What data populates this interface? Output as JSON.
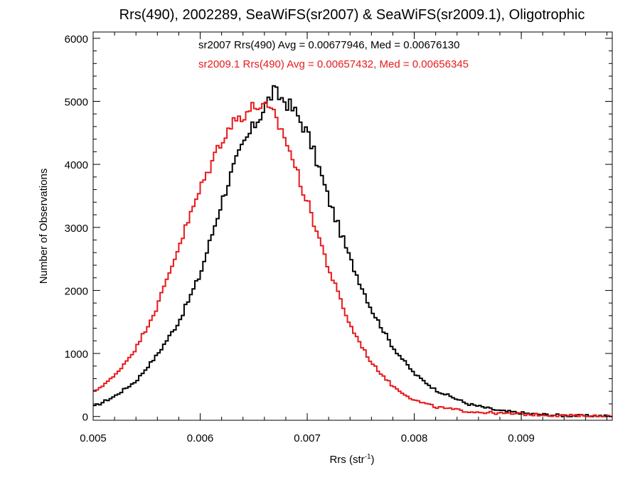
{
  "chart_data": {
    "type": "line",
    "step": true,
    "title": "Rrs(490), 2002289, SeaWiFS(sr2007) & SeaWiFS(sr2009.1), Oligotrophic",
    "xlabel": "Rrs (str",
    "xlabel_superscript": "-1",
    "xlabel_close": ")",
    "ylabel": "Number of Observations",
    "xlim": [
      0.005,
      0.00985
    ],
    "ylim": [
      -60,
      6100
    ],
    "xticks": [
      0.005,
      0.006,
      0.007,
      0.008,
      0.009
    ],
    "xtick_labels": [
      "0.005",
      "0.006",
      "0.007",
      "0.008",
      "0.009"
    ],
    "yticks": [
      0,
      1000,
      2000,
      3000,
      4000,
      5000,
      6000
    ],
    "ytick_labels": [
      "0",
      "1000",
      "2000",
      "3000",
      "4000",
      "5000",
      "6000"
    ],
    "grid": false,
    "annotations": [
      {
        "text": "sr2007 Rrs(490) Avg = 0.00677946, Med = 0.00676130",
        "color": "#000000"
      },
      {
        "text": "sr2009.1 Rrs(490) Avg = 0.00657432, Med = 0.00656345",
        "color": "#e8191c"
      }
    ],
    "series": [
      {
        "color": "#000000",
        "x": [
          0.005,
          0.0052,
          0.0054,
          0.0056,
          0.0058,
          0.006,
          0.0062,
          0.0063,
          0.0064,
          0.0065,
          0.0066,
          0.00668,
          0.0068,
          0.0069,
          0.007,
          0.0071,
          0.0072,
          0.0074,
          0.0076,
          0.0078,
          0.008,
          0.0082,
          0.0085,
          0.0088,
          0.0091,
          0.0094,
          0.00985
        ],
        "y": [
          150,
          320,
          560,
          980,
          1500,
          2250,
          3400,
          3900,
          4300,
          4600,
          4900,
          5150,
          5000,
          4800,
          4500,
          4000,
          3450,
          2500,
          1700,
          1100,
          680,
          420,
          200,
          90,
          40,
          15,
          5
        ]
      },
      {
        "color": "#e8191c",
        "x": [
          0.005,
          0.0052,
          0.0054,
          0.0056,
          0.0058,
          0.006,
          0.0061,
          0.0062,
          0.0063,
          0.0064,
          0.0065,
          0.00655,
          0.0066,
          0.0067,
          0.0068,
          0.0069,
          0.007,
          0.0071,
          0.0072,
          0.0074,
          0.0076,
          0.0078,
          0.008,
          0.0082,
          0.0085,
          0.0088,
          0.0091,
          0.0094,
          0.00985
        ],
        "y": [
          380,
          640,
          1080,
          1750,
          2700,
          3600,
          4000,
          4400,
          4650,
          4800,
          4900,
          4950,
          4900,
          4750,
          4400,
          3900,
          3400,
          2900,
          2350,
          1450,
          850,
          480,
          260,
          150,
          80,
          50,
          30,
          15,
          5
        ]
      }
    ]
  }
}
